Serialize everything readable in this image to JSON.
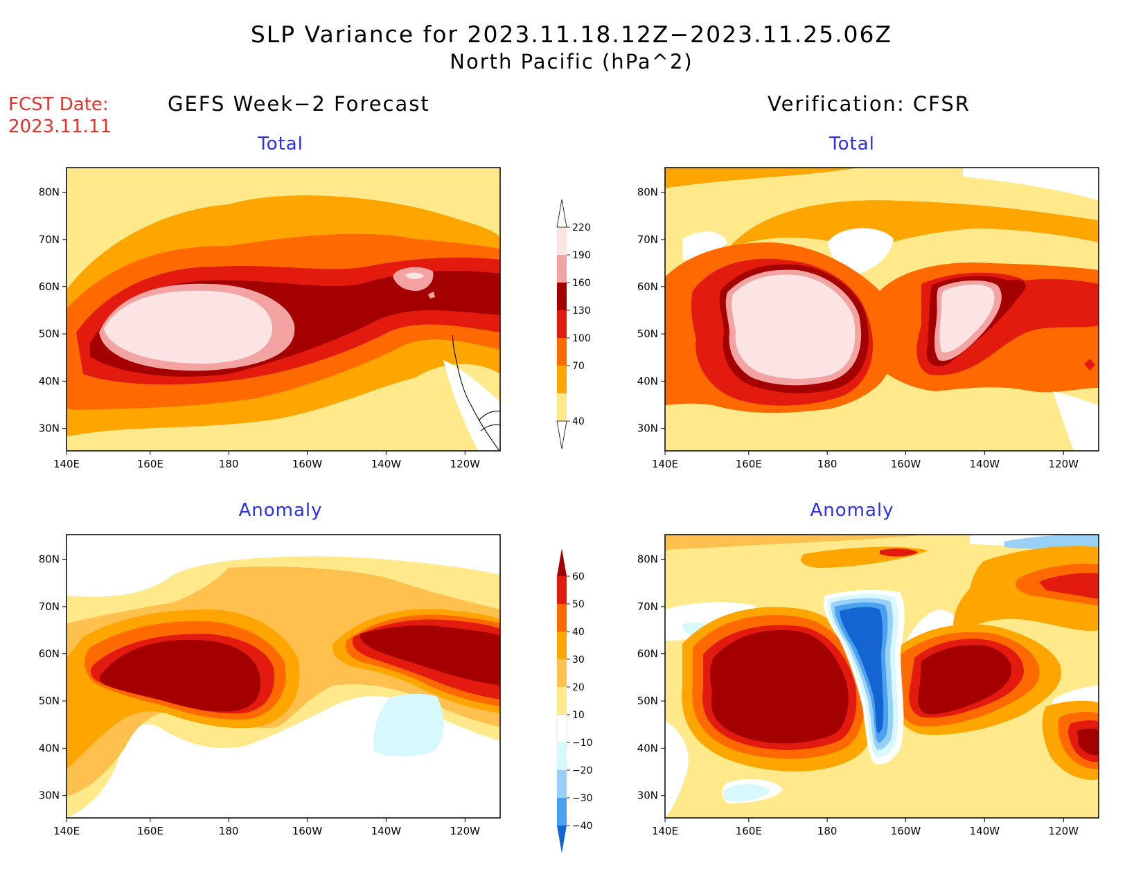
{
  "header": {
    "title_line1": "SLP Variance for 2023.11.18.12Z−2023.11.25.06Z",
    "title_line2": "North Pacific (hPa^2)",
    "fcst_label": "FCST Date:",
    "fcst_date": "2023.11.11",
    "left_column_title": "GEFS Week−2 Forecast",
    "right_column_title": "Verification: CFSR"
  },
  "panels": {
    "top_left_title": "Total",
    "top_right_title": "Total",
    "bottom_left_title": "Anomaly",
    "bottom_right_title": "Anomaly"
  },
  "axes": {
    "lon_labels": [
      "140E",
      "160E",
      "180",
      "160W",
      "140W",
      "120W"
    ],
    "lat_labels": [
      "80N",
      "70N",
      "60N",
      "50N",
      "40N",
      "30N"
    ]
  },
  "colorbars": {
    "total": {
      "levels": [
        "40",
        "70",
        "100",
        "130",
        "160",
        "190",
        "220"
      ],
      "colors": [
        "#ffe98a",
        "#ffa500",
        "#ff6a00",
        "#e31a0e",
        "#a50000",
        "#f4a3a3",
        "#fde4e4"
      ]
    },
    "anomaly": {
      "levels": [
        "60",
        "50",
        "40",
        "30",
        "20",
        "10",
        "−10",
        "−20",
        "−30",
        "−40"
      ],
      "colors": [
        "#a50000",
        "#e31a0e",
        "#ff6a00",
        "#ffa500",
        "#ffc04d",
        "#ffe98a",
        "#ffffff",
        "#d8f8ff",
        "#99d0f7",
        "#4aa2ee",
        "#1464d2"
      ]
    }
  }
}
